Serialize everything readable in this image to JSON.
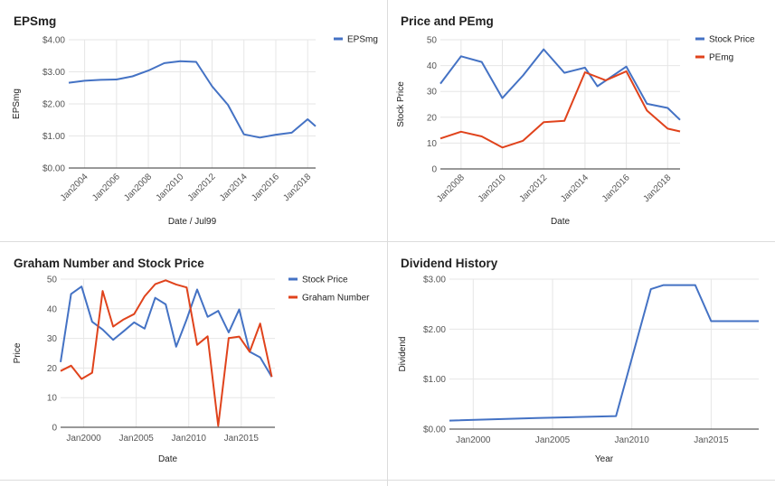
{
  "chart_data": [
    {
      "type": "line",
      "title": "EPSmg",
      "xlabel": "Date / Jul99",
      "ylabel": "EPSmg",
      "x_kind": "year",
      "xlim": [
        2003,
        2018.5
      ],
      "ylim": [
        0,
        4
      ],
      "yticks": [
        0,
        1,
        2,
        3,
        4
      ],
      "ytick_labels": [
        "$0.00",
        "$1.00",
        "$2.00",
        "$3.00",
        "$4.00"
      ],
      "xticks": [
        2004,
        2006,
        2008,
        2010,
        2012,
        2014,
        2016,
        2018
      ],
      "xtick_labels": [
        "Jan2004",
        "Jan2006",
        "Jan2008",
        "Jan2010",
        "Jan2012",
        "Jan2014",
        "Jan2016",
        "Jan2018"
      ],
      "xtick_rotation": -45,
      "grid": true,
      "legend_position": "right",
      "series": [
        {
          "name": "EPSmg",
          "color": "#4472c4",
          "x": [
            2003,
            2004,
            2005,
            2006,
            2007,
            2008,
            2009,
            2010,
            2011,
            2012,
            2013,
            2014,
            2015,
            2016,
            2017,
            2018,
            2018.5
          ],
          "y": [
            2.66,
            2.72,
            2.75,
            2.76,
            2.86,
            3.04,
            3.27,
            3.33,
            3.31,
            2.55,
            1.97,
            1.05,
            0.95,
            1.04,
            1.1,
            1.52,
            1.3
          ]
        }
      ]
    },
    {
      "type": "line",
      "title": "Price and PEmg",
      "xlabel": "Date",
      "ylabel": "Stock Price",
      "x_kind": "year",
      "xlim": [
        2007,
        2018.6
      ],
      "ylim": [
        0,
        50
      ],
      "yticks": [
        0,
        10,
        20,
        30,
        40,
        50
      ],
      "ytick_labels": [
        "0",
        "10",
        "20",
        "30",
        "40",
        "50"
      ],
      "xticks": [
        2008,
        2010,
        2012,
        2014,
        2016,
        2018
      ],
      "xtick_labels": [
        "Jan2008",
        "Jan2010",
        "Jan2012",
        "Jan2014",
        "Jan2016",
        "Jan2018"
      ],
      "xtick_rotation": -45,
      "grid": true,
      "legend_position": "right",
      "series": [
        {
          "name": "Stock Price",
          "color": "#4472c4",
          "x": [
            2007,
            2008,
            2009,
            2010,
            2011,
            2012,
            2013,
            2014,
            2014.6,
            2016,
            2017,
            2018,
            2018.6
          ],
          "y": [
            33,
            43.6,
            41.4,
            27.4,
            36.2,
            46.3,
            37.2,
            39.2,
            32,
            39.6,
            25.2,
            23.6,
            19
          ]
        },
        {
          "name": "PEmg",
          "color": "#e0431c",
          "x": [
            2007,
            2008,
            2009,
            2010,
            2011,
            2012,
            2013,
            2014,
            2015,
            2016,
            2017,
            2018,
            2018.6
          ],
          "y": [
            11.8,
            14.4,
            12.6,
            8.3,
            10.9,
            18.1,
            18.6,
            37.4,
            34.3,
            37.8,
            22.6,
            15.6,
            14.5
          ]
        }
      ]
    },
    {
      "type": "line",
      "title": "Graham Number and Stock Price",
      "xlabel": "Date",
      "ylabel": "Price",
      "x_kind": "year",
      "xlim": [
        1997.8,
        2018.2
      ],
      "ylim": [
        0,
        50
      ],
      "yticks": [
        0,
        10,
        20,
        30,
        40,
        50
      ],
      "ytick_labels": [
        "0",
        "10",
        "20",
        "30",
        "40",
        "50"
      ],
      "xticks": [
        2000,
        2005,
        2010,
        2015
      ],
      "xtick_labels": [
        "Jan2000",
        "Jan2005",
        "Jan2010",
        "Jan2015"
      ],
      "xtick_rotation": 0,
      "grid": true,
      "legend_position": "right",
      "series": [
        {
          "name": "Stock Price",
          "color": "#4472c4",
          "x": [
            1997.8,
            1998.8,
            1999.8,
            2000.8,
            2001.8,
            2002.8,
            2003.8,
            2004.8,
            2005.8,
            2006.8,
            2007.8,
            2008.8,
            2009.8,
            2010.8,
            2011.8,
            2012.8,
            2013.8,
            2014.8,
            2015.8,
            2016.8,
            2017.9
          ],
          "y": [
            22,
            45,
            47.5,
            35.6,
            33,
            29.5,
            32.4,
            35.4,
            33.3,
            43.7,
            41.5,
            27.2,
            36.4,
            46.5,
            37.3,
            39.3,
            32,
            39.8,
            25.5,
            23.6,
            17
          ]
        },
        {
          "name": "Graham Number",
          "color": "#e0431c",
          "x": [
            1997.8,
            1998.8,
            1999.8,
            2000.8,
            2001.8,
            2002.8,
            2003.8,
            2004.8,
            2005.8,
            2006.8,
            2007.8,
            2008.8,
            2009.8,
            2010.8,
            2011.8,
            2012.8,
            2013.8,
            2014.8,
            2015.8,
            2016.8,
            2017.9
          ],
          "y": [
            19,
            20.8,
            16.3,
            18.4,
            46,
            34,
            36.4,
            38.2,
            44.2,
            48.3,
            49.6,
            48.2,
            47.2,
            27.8,
            30.7,
            0.5,
            30.1,
            30.6,
            25.5,
            35,
            17
          ]
        }
      ]
    },
    {
      "type": "line",
      "title": "Dividend History",
      "xlabel": "Year",
      "ylabel": "Dividend",
      "x_kind": "year",
      "xlim": [
        1998.5,
        2018
      ],
      "ylim": [
        0,
        3
      ],
      "yticks": [
        0,
        1,
        2,
        3
      ],
      "ytick_labels": [
        "$0.00",
        "$1.00",
        "$2.00",
        "$3.00"
      ],
      "xticks": [
        2000,
        2005,
        2010,
        2015
      ],
      "xtick_labels": [
        "Jan2000",
        "Jan2005",
        "Jan2010",
        "Jan2015"
      ],
      "xtick_rotation": 0,
      "grid": true,
      "legend_position": "none",
      "series": [
        {
          "name": "",
          "color": "#4472c4",
          "x": [
            1998.5,
            2004,
            2009,
            2011.2,
            2012,
            2013,
            2014,
            2015,
            2016,
            2018
          ],
          "y": [
            0.17,
            0.22,
            0.26,
            2.8,
            2.88,
            2.88,
            2.88,
            2.16,
            2.16,
            2.16
          ]
        }
      ]
    }
  ]
}
